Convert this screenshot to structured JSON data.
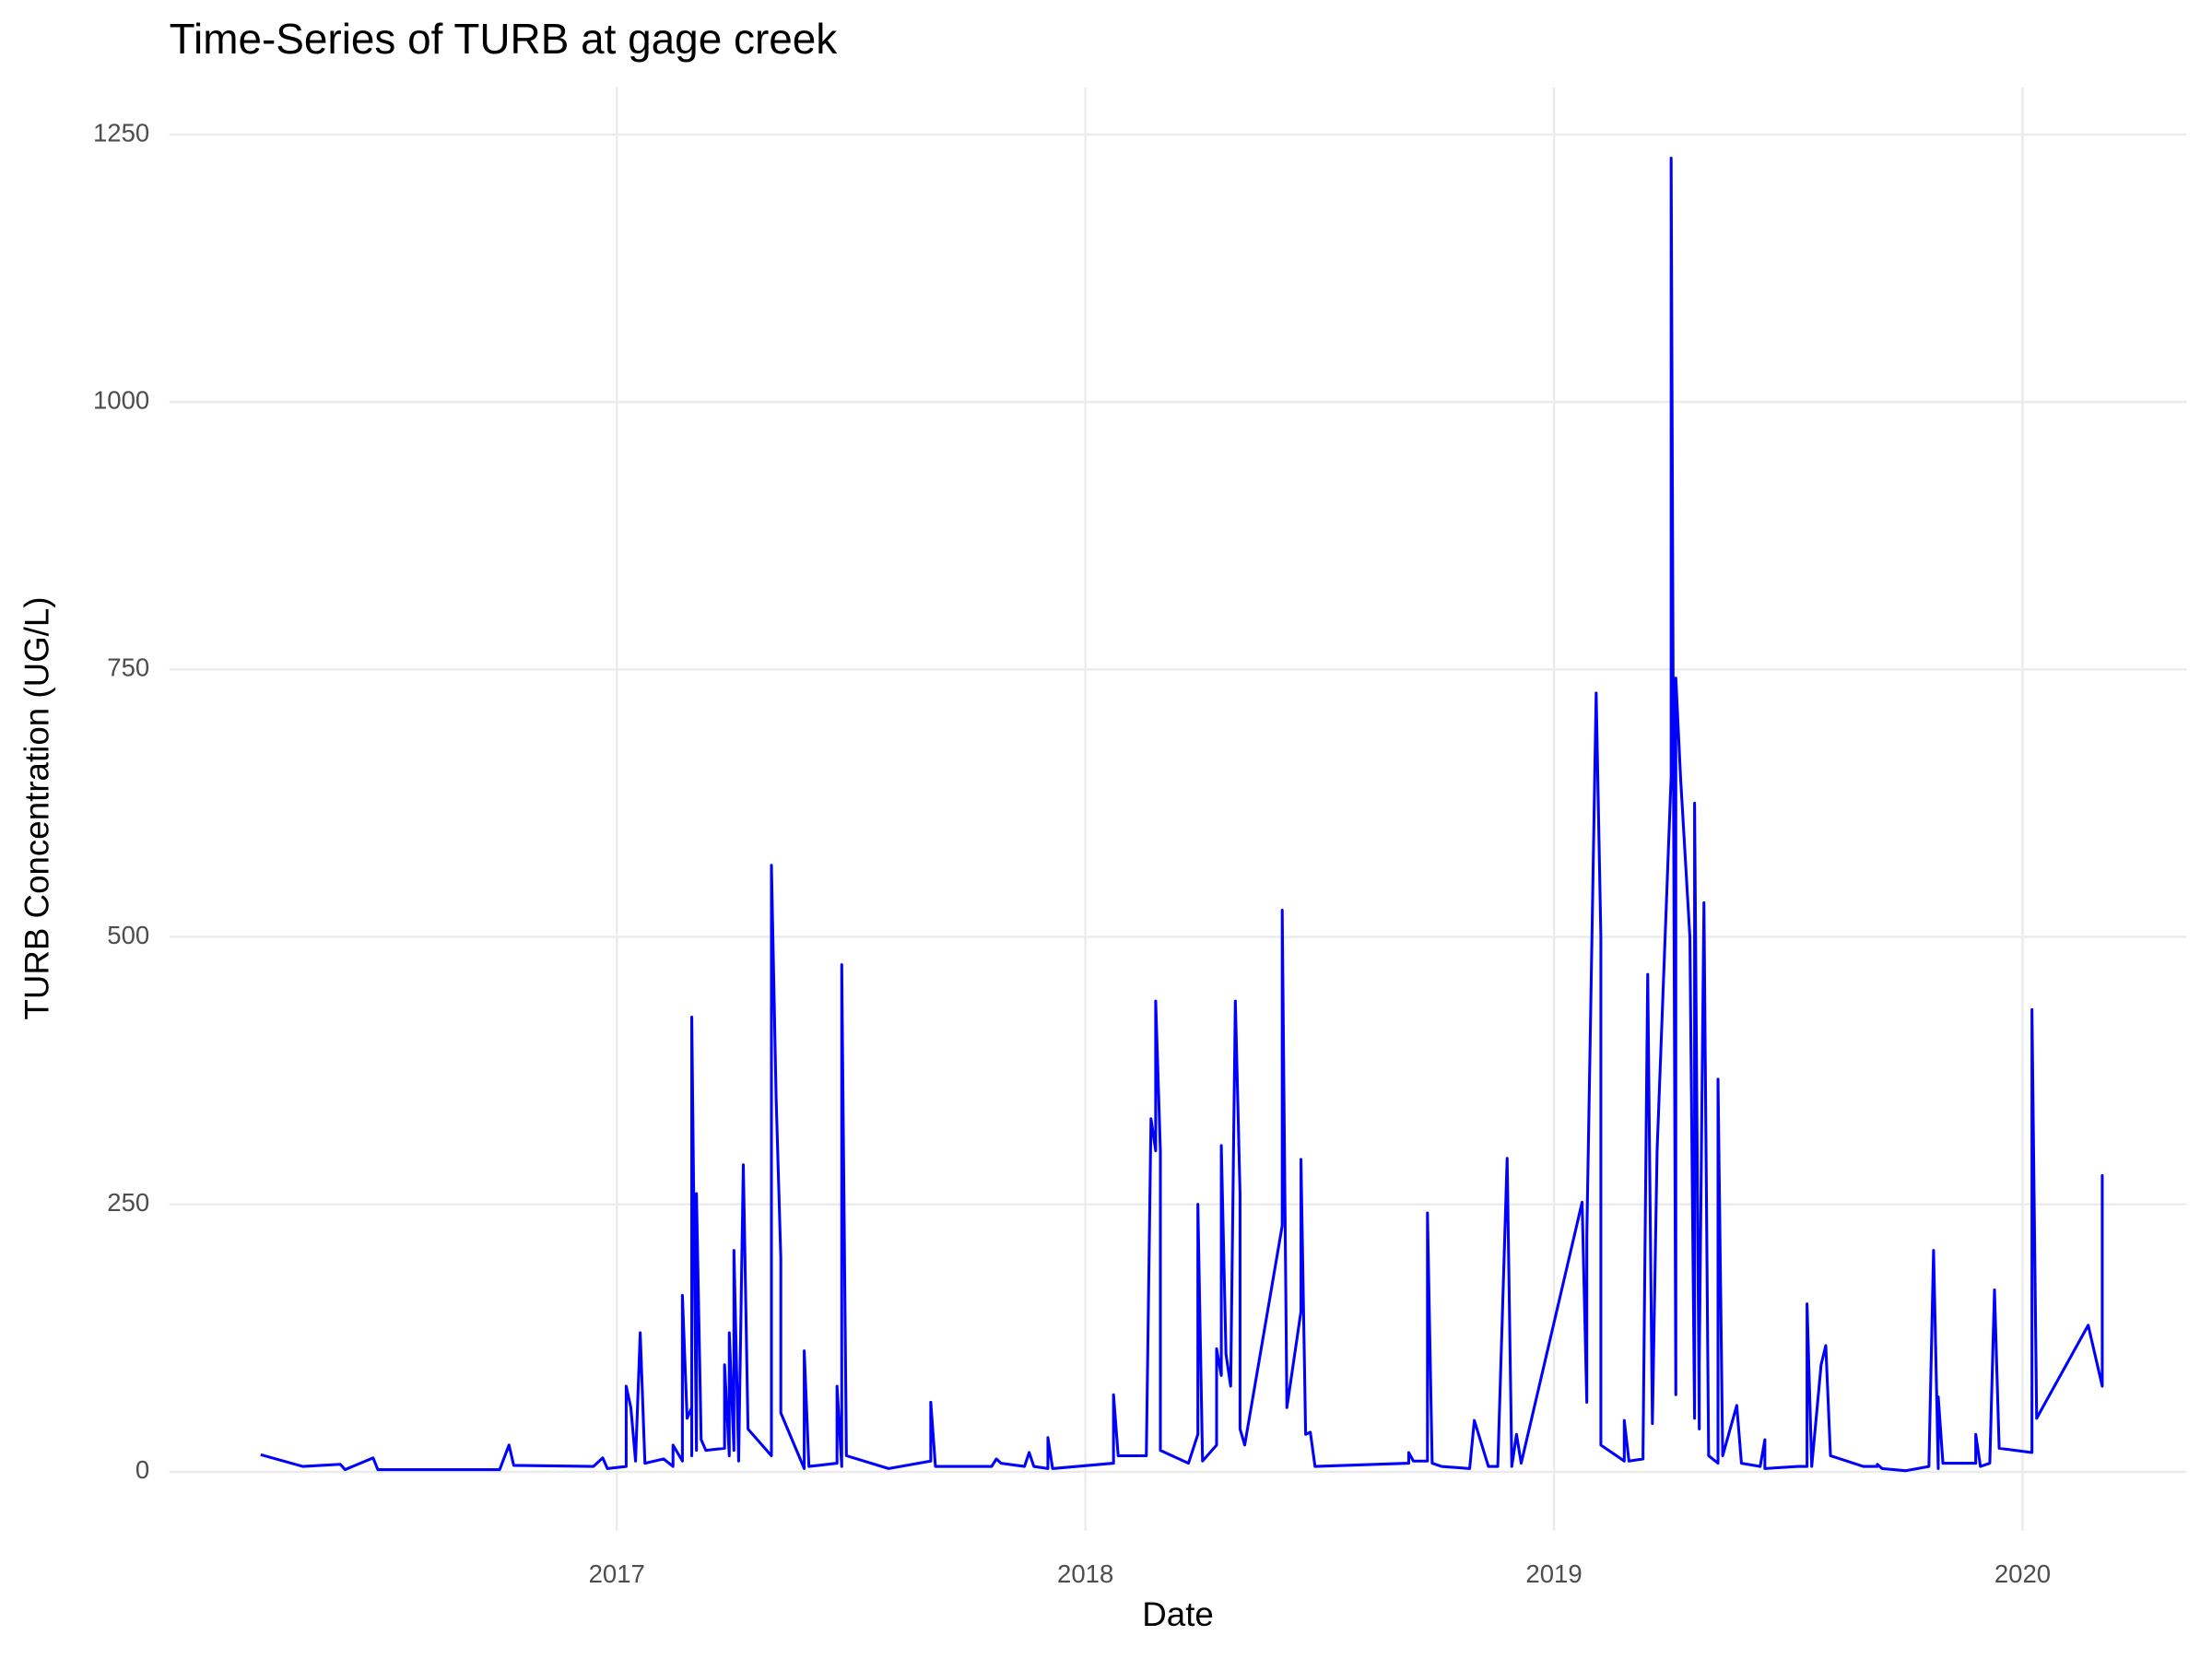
{
  "chart_data": {
    "type": "line",
    "title": "Time-Series of TURB at gage creek",
    "x_label": "Date",
    "y_label": "TURB Concentration (UG/L)",
    "x": [
      2016.24,
      2016.33,
      2016.41,
      2016.42,
      2016.48,
      2016.49,
      2016.75,
      2016.77,
      2016.78,
      2016.95,
      2016.97,
      2016.98,
      2017.02,
      2017.02,
      2017.03,
      2017.04,
      2017.05,
      2017.06,
      2017.1,
      2017.12,
      2017.12,
      2017.14,
      2017.14,
      2017.15,
      2017.16,
      2017.16,
      2017.16,
      2017.17,
      2017.17,
      2017.18,
      2017.19,
      2017.23,
      2017.23,
      2017.24,
      2017.24,
      2017.25,
      2017.25,
      2017.26,
      2017.27,
      2017.28,
      2017.33,
      2017.33,
      2017.34,
      2017.35,
      2017.35,
      2017.4,
      2017.4,
      2017.41,
      2017.47,
      2017.47,
      2017.48,
      2017.48,
      2017.49,
      2017.58,
      2017.67,
      2017.67,
      2017.68,
      2017.8,
      2017.81,
      2017.82,
      2017.87,
      2017.88,
      2017.89,
      2017.92,
      2017.92,
      2017.93,
      2018.06,
      2018.06,
      2018.07,
      2018.13,
      2018.14,
      2018.15,
      2018.15,
      2018.16,
      2018.16,
      2018.22,
      2018.24,
      2018.24,
      2018.25,
      2018.28,
      2018.28,
      2018.29,
      2018.29,
      2018.3,
      2018.31,
      2018.32,
      2018.33,
      2018.33,
      2018.34,
      2018.42,
      2018.42,
      2018.43,
      2018.46,
      2018.46,
      2018.47,
      2018.48,
      2018.49,
      2018.69,
      2018.69,
      2018.7,
      2018.73,
      2018.73,
      2018.74,
      2018.76,
      2018.82,
      2018.83,
      2018.86,
      2018.88,
      2018.9,
      2018.91,
      2018.92,
      2018.93,
      2019.06,
      2019.07,
      2019.07,
      2019.09,
      2019.1,
      2019.1,
      2019.15,
      2019.15,
      2019.16,
      2019.19,
      2019.19,
      2019.2,
      2019.21,
      2019.22,
      2019.25,
      2019.25,
      2019.26,
      2019.26,
      2019.27,
      2019.29,
      2019.3,
      2019.3,
      2019.31,
      2019.31,
      2019.32,
      2019.33,
      2019.35,
      2019.35,
      2019.36,
      2019.39,
      2019.4,
      2019.44,
      2019.45,
      2019.45,
      2019.52,
      2019.54,
      2019.54,
      2019.55,
      2019.57,
      2019.58,
      2019.59,
      2019.66,
      2019.69,
      2019.69,
      2019.7,
      2019.75,
      2019.8,
      2019.81,
      2019.82,
      2019.82,
      2019.83,
      2019.9,
      2019.9,
      2019.91,
      2019.93,
      2019.94,
      2019.95,
      2020.02,
      2020.02,
      2020.03,
      2020.14,
      2020.17,
      2020.17,
      2020.17
    ],
    "series": [
      {
        "name": "TURB",
        "color": "#0000ff",
        "values": [
          16,
          5,
          7,
          2,
          13,
          2,
          2,
          25,
          6,
          5,
          13,
          3,
          5,
          80,
          60,
          10,
          130,
          8,
          12,
          5,
          25,
          10,
          165,
          50,
          60,
          15,
          425,
          20,
          260,
          30,
          20,
          22,
          100,
          15,
          130,
          20,
          207,
          10,
          287,
          40,
          15,
          567,
          350,
          200,
          55,
          3,
          113,
          5,
          8,
          80,
          5,
          474,
          15,
          3,
          10,
          65,
          5,
          5,
          12,
          8,
          5,
          18,
          5,
          3,
          32,
          3,
          8,
          72,
          15,
          15,
          330,
          300,
          440,
          300,
          20,
          8,
          35,
          250,
          10,
          25,
          115,
          90,
          305,
          110,
          80,
          440,
          260,
          40,
          25,
          230,
          525,
          60,
          150,
          292,
          35,
          37,
          5,
          8,
          18,
          10,
          10,
          242,
          8,
          5,
          3,
          48,
          5,
          5,
          293,
          5,
          35,
          8,
          252,
          65,
          220,
          728,
          500,
          25,
          10,
          48,
          10,
          12,
          20,
          465,
          45,
          300,
          650,
          1228,
          72,
          742,
          650,
          500,
          50,
          625,
          40,
          100,
          532,
          15,
          8,
          367,
          15,
          62,
          8,
          5,
          30,
          3,
          5,
          5,
          157,
          5,
          100,
          118,
          15,
          5,
          5,
          7,
          3,
          1,
          5,
          207,
          3,
          70,
          8,
          8,
          35,
          5,
          8,
          170,
          22,
          18,
          432,
          50,
          137,
          80,
          277,
          80
        ]
      }
    ],
    "xlim": [
      2016.045,
      2020.35
    ],
    "xticks": [
      2017,
      2018,
      2019,
      2020
    ],
    "ylim": [
      -55,
      1294
    ],
    "yticks": [
      0,
      250,
      500,
      750,
      1000,
      1250
    ],
    "grid": true
  }
}
